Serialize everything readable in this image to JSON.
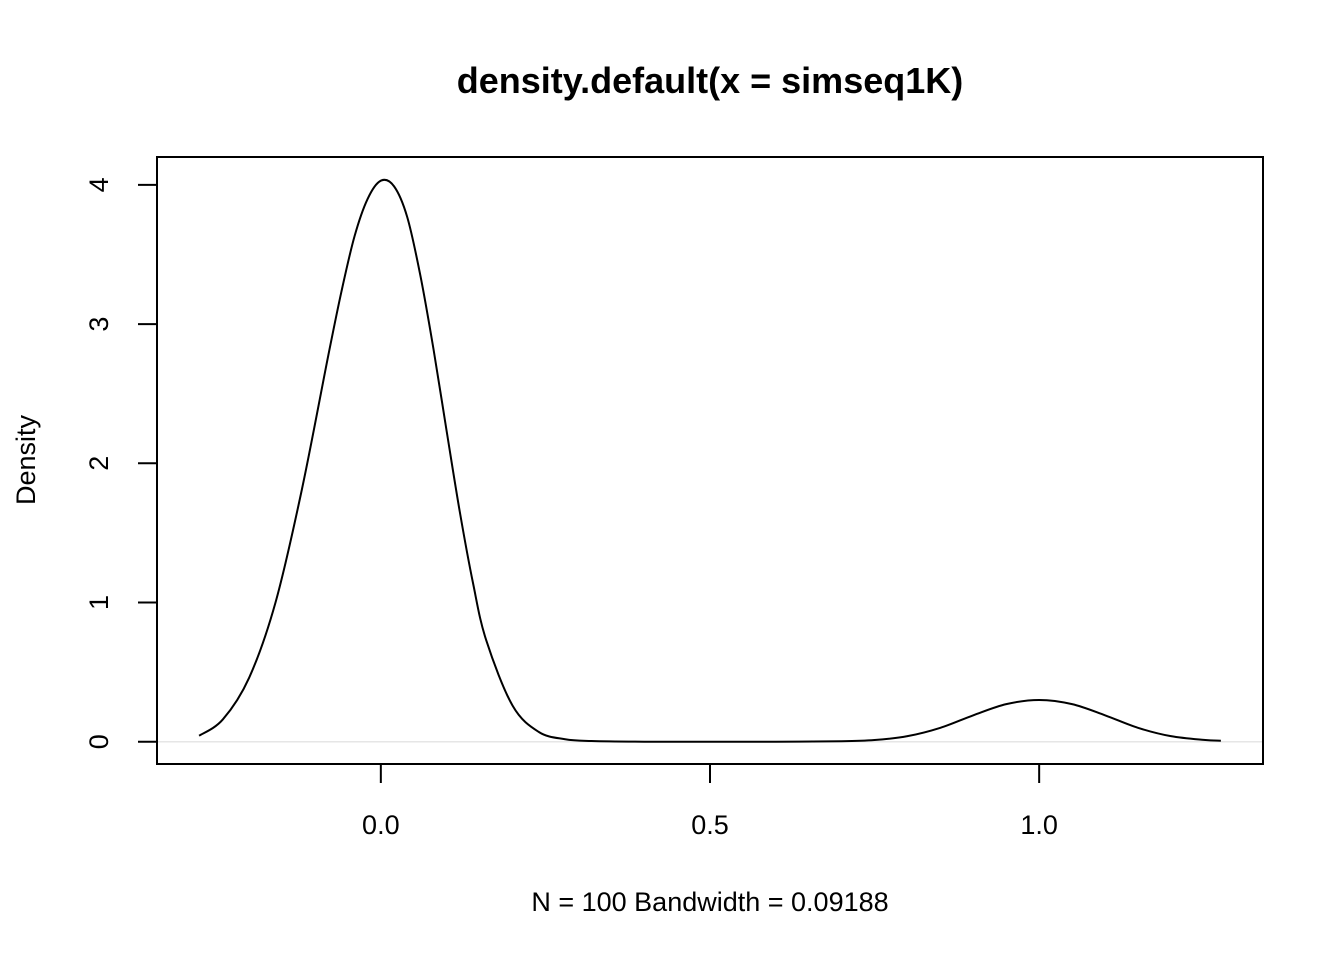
{
  "chart_data": {
    "type": "line",
    "title": "density.default(x = simseq1K)",
    "xlabel": "N = 100   Bandwidth = 0.09188",
    "ylabel": "Density",
    "xlim": [
      -0.34,
      1.34
    ],
    "ylim": [
      -0.16,
      4.2
    ],
    "x_ticks": [
      0.0,
      0.5,
      1.0
    ],
    "x_tick_labels": [
      "0.0",
      "0.5",
      "1.0"
    ],
    "y_ticks": [
      0,
      1,
      2,
      3,
      4
    ],
    "y_tick_labels": [
      "0",
      "1",
      "2",
      "3",
      "4"
    ],
    "grid": false,
    "baseline": 0,
    "series": [
      {
        "x": [
          -0.276,
          -0.24,
          -0.2,
          -0.16,
          -0.12,
          -0.08,
          -0.06,
          -0.04,
          -0.02,
          0.0,
          0.02,
          0.04,
          0.06,
          0.08,
          0.1,
          0.12,
          0.14,
          0.16,
          0.2,
          0.24,
          0.28,
          0.32,
          0.4,
          0.5,
          0.6,
          0.7,
          0.75,
          0.8,
          0.85,
          0.9,
          0.95,
          1.0,
          1.05,
          1.1,
          1.15,
          1.2,
          1.25,
          1.276
        ],
        "y": [
          0.043,
          0.16,
          0.46,
          1.0,
          1.81,
          2.77,
          3.23,
          3.63,
          3.9,
          4.03,
          3.99,
          3.77,
          3.35,
          2.82,
          2.23,
          1.65,
          1.14,
          0.73,
          0.26,
          0.07,
          0.018,
          0.005,
          0.0,
          0.0,
          0.0,
          0.003,
          0.012,
          0.04,
          0.1,
          0.19,
          0.27,
          0.3,
          0.27,
          0.19,
          0.1,
          0.04,
          0.013,
          0.007
        ]
      }
    ]
  }
}
